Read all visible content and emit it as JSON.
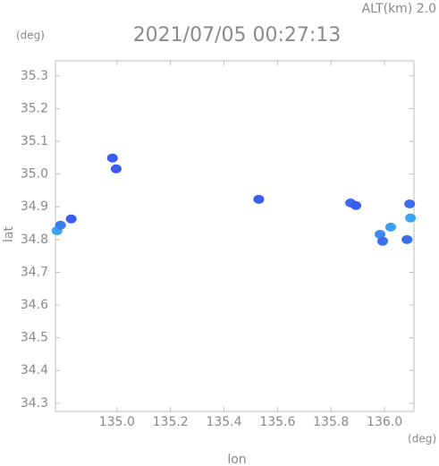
{
  "chart_data": {
    "type": "scatter",
    "altitude": "ALT(km) 2.0",
    "title": "2021/07/05 00:27:13",
    "y_unit": "(deg)",
    "x_unit": "(deg)",
    "y_label": "lat",
    "x_label": "lon",
    "xlim": [
      134.77,
      136.11
    ],
    "ylim": [
      34.275,
      35.346
    ],
    "xticks": [
      {
        "value": 135.0,
        "label": "135.0"
      },
      135.2,
      135.4,
      135.6,
      135.8,
      {
        "value": 136.0,
        "label": "136.0"
      }
    ],
    "yticks": [
      34.3,
      34.4,
      34.5,
      34.6,
      34.7,
      34.8,
      34.9,
      {
        "value": 35.0,
        "label": "35.0"
      },
      35.1,
      35.2,
      35.3
    ],
    "x": [
      134.983,
      134.997,
      134.776,
      134.789,
      134.829,
      135.53,
      135.873,
      135.893,
      135.983,
      136.023,
      135.993,
      136.084,
      136.094,
      136.097
    ],
    "values": [
      35.049,
      35.016,
      34.827,
      34.844,
      34.863,
      34.923,
      34.912,
      34.904,
      34.816,
      34.838,
      34.795,
      34.8,
      34.909,
      34.866
    ],
    "colors": [
      "#3a5cf0",
      "#3a5cf0",
      "#3aa4f2",
      "#3a7cf0",
      "#3a5cf0",
      "#3a5cf0",
      "#3a6cf0",
      "#3a5cf0",
      "#3a8cf2",
      "#3aa0f2",
      "#3a6cf0",
      "#3a6cf0",
      "#3a6cf0",
      "#3aa4f2"
    ]
  }
}
